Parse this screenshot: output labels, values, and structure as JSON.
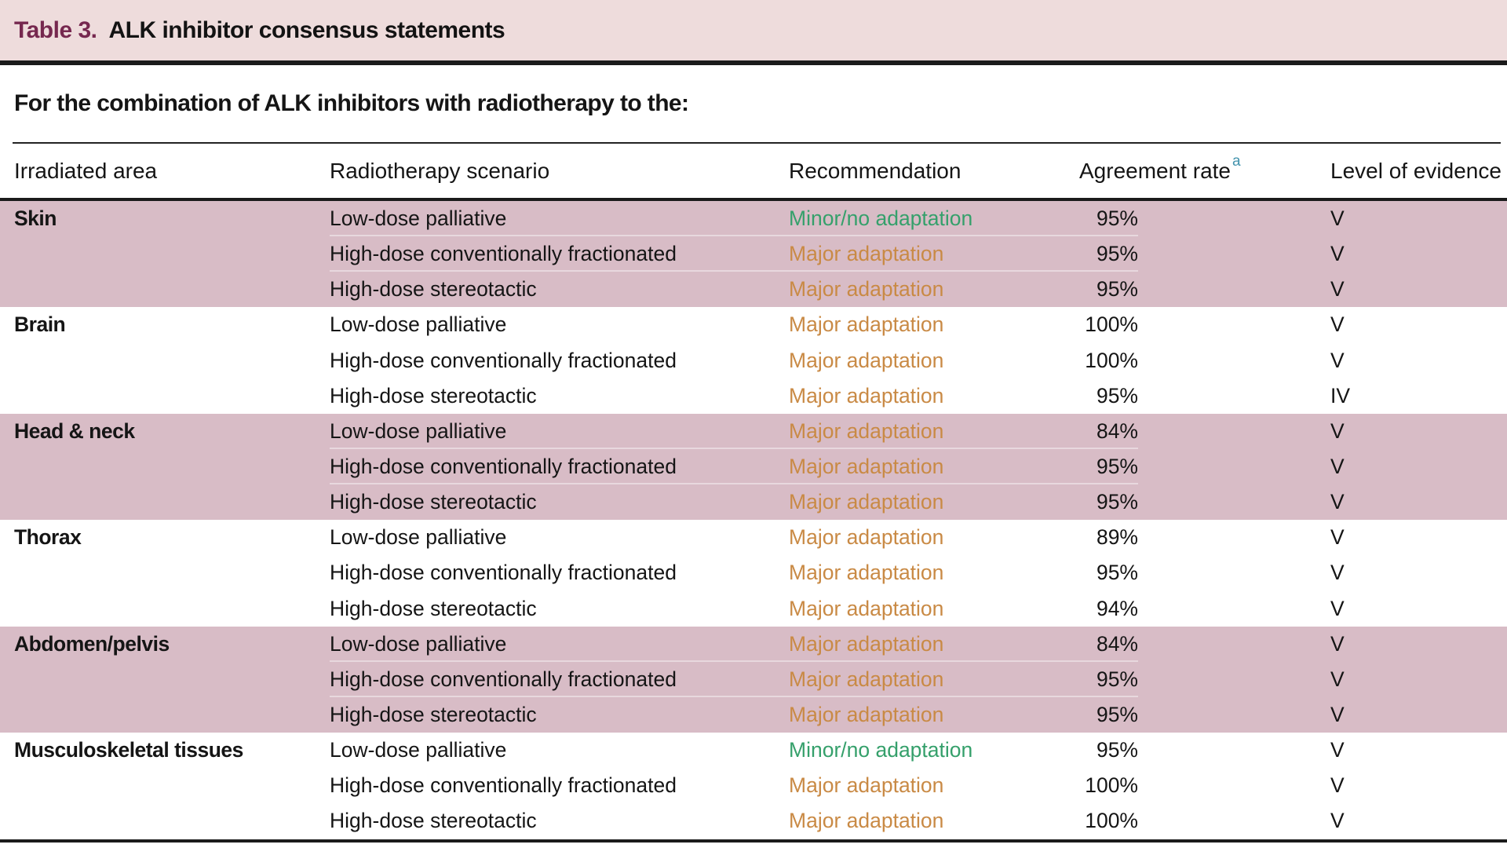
{
  "table": {
    "label": "Table 3.",
    "title": "ALK inhibitor consensus statements",
    "subheading": "For the combination of ALK inhibitors with radiotherapy to the:",
    "columns": {
      "area": "Irradiated area",
      "scenario": "Radiotherapy scenario",
      "recommendation": "Recommendation",
      "agreement": "Agreement rate",
      "evidence": "Level of evidence"
    },
    "agreement_superscript": "a",
    "groups": [
      {
        "area": "Skin",
        "shaded": true,
        "rows": [
          {
            "scenario": "Low-dose palliative",
            "recommendation": "Minor/no adaptation",
            "rec_type": "minor",
            "agreement": "95%",
            "evidence": "V"
          },
          {
            "scenario": "High-dose conventionally fractionated",
            "recommendation": "Major adaptation",
            "rec_type": "major",
            "agreement": "95%",
            "evidence": "V"
          },
          {
            "scenario": "High-dose stereotactic",
            "recommendation": "Major adaptation",
            "rec_type": "major",
            "agreement": "95%",
            "evidence": "V"
          }
        ]
      },
      {
        "area": "Brain",
        "shaded": false,
        "rows": [
          {
            "scenario": "Low-dose palliative",
            "recommendation": "Major adaptation",
            "rec_type": "major",
            "agreement": "100%",
            "evidence": "V"
          },
          {
            "scenario": "High-dose conventionally fractionated",
            "recommendation": "Major adaptation",
            "rec_type": "major",
            "agreement": "100%",
            "evidence": "V"
          },
          {
            "scenario": "High-dose stereotactic",
            "recommendation": "Major adaptation",
            "rec_type": "major",
            "agreement": "95%",
            "evidence": "IV"
          }
        ]
      },
      {
        "area": "Head & neck",
        "shaded": true,
        "rows": [
          {
            "scenario": "Low-dose palliative",
            "recommendation": "Major adaptation",
            "rec_type": "major",
            "agreement": "84%",
            "evidence": "V"
          },
          {
            "scenario": "High-dose conventionally fractionated",
            "recommendation": "Major adaptation",
            "rec_type": "major",
            "agreement": "95%",
            "evidence": "V"
          },
          {
            "scenario": "High-dose stereotactic",
            "recommendation": "Major adaptation",
            "rec_type": "major",
            "agreement": "95%",
            "evidence": "V"
          }
        ]
      },
      {
        "area": "Thorax",
        "shaded": false,
        "rows": [
          {
            "scenario": "Low-dose palliative",
            "recommendation": "Major adaptation",
            "rec_type": "major",
            "agreement": "89%",
            "evidence": "V"
          },
          {
            "scenario": "High-dose conventionally fractionated",
            "recommendation": "Major adaptation",
            "rec_type": "major",
            "agreement": "95%",
            "evidence": "V"
          },
          {
            "scenario": "High-dose stereotactic",
            "recommendation": "Major adaptation",
            "rec_type": "major",
            "agreement": "94%",
            "evidence": "V"
          }
        ]
      },
      {
        "area": "Abdomen/pelvis",
        "shaded": true,
        "rows": [
          {
            "scenario": "Low-dose palliative",
            "recommendation": "Major adaptation",
            "rec_type": "major",
            "agreement": "84%",
            "evidence": "V"
          },
          {
            "scenario": "High-dose conventionally fractionated",
            "recommendation": "Major adaptation",
            "rec_type": "major",
            "agreement": "95%",
            "evidence": "V"
          },
          {
            "scenario": "High-dose stereotactic",
            "recommendation": "Major adaptation",
            "rec_type": "major",
            "agreement": "95%",
            "evidence": "V"
          }
        ]
      },
      {
        "area": "Musculoskeletal tissues",
        "shaded": false,
        "rows": [
          {
            "scenario": "Low-dose palliative",
            "recommendation": "Minor/no adaptation",
            "rec_type": "minor",
            "agreement": "95%",
            "evidence": "V"
          },
          {
            "scenario": "High-dose conventionally fractionated",
            "recommendation": "Major adaptation",
            "rec_type": "major",
            "agreement": "100%",
            "evidence": "V"
          },
          {
            "scenario": "High-dose stereotactic",
            "recommendation": "Major adaptation",
            "rec_type": "major",
            "agreement": "100%",
            "evidence": "V"
          }
        ]
      }
    ],
    "colors": {
      "band": "#eedcdc",
      "shaded_row": "#d8bcc6",
      "label": "#76284f",
      "minor": "#35a06b",
      "major": "#c98a45",
      "superscript": "#4293ad"
    }
  }
}
